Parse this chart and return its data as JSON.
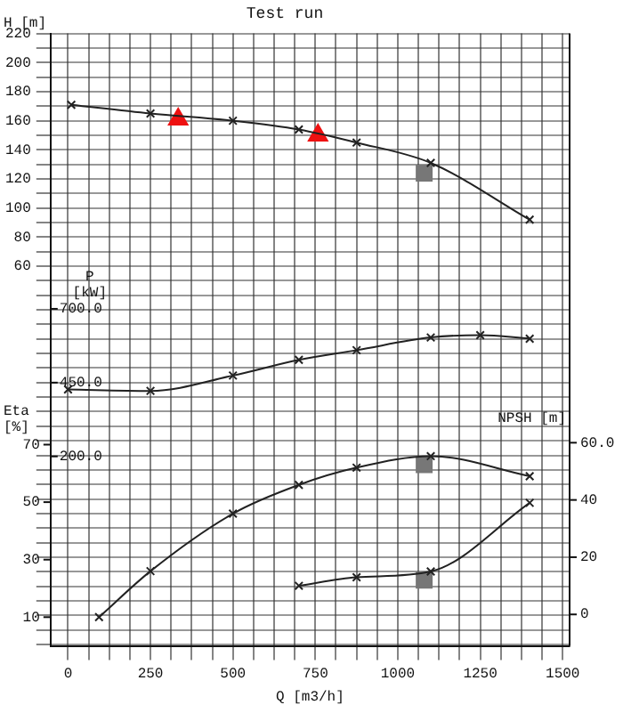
{
  "chart_data": [
    {
      "type": "line",
      "title": "Test run",
      "xlabel": "Q [m3/h]",
      "ylabel": "H [m]",
      "y2label": "P [kW]",
      "xlim": [
        -53,
        1521
      ],
      "xticks": [
        0,
        {
          "value": 62.5,
          "label": null
        },
        {
          "value": 125,
          "label": null
        },
        {
          "value": 187.5,
          "label": null
        },
        250,
        {
          "value": 312.5,
          "label": null
        },
        {
          "value": 375,
          "label": null
        },
        {
          "value": 437.5,
          "label": null
        },
        500,
        {
          "value": 562.5,
          "label": null
        },
        {
          "value": 625,
          "label": null
        },
        {
          "value": 687.5,
          "label": null
        },
        750,
        {
          "value": 812.5,
          "label": null
        },
        {
          "value": 875,
          "label": null
        },
        {
          "value": 937.5,
          "label": null
        },
        1000,
        {
          "value": 1062.5,
          "label": null
        },
        {
          "value": 1125,
          "label": null
        },
        {
          "value": 1187.5,
          "label": null
        },
        1250,
        {
          "value": 1312.5,
          "label": null
        },
        {
          "value": 1375,
          "label": null
        },
        {
          "value": 1437.5,
          "label": null
        },
        1500
      ],
      "ylim": [
        -201,
        220
      ],
      "yticks": [
        {
          "value": -200,
          "label": null
        },
        {
          "value": -190,
          "label": null
        },
        {
          "value": -180,
          "label": null
        },
        {
          "value": -170,
          "label": null
        },
        {
          "value": -160,
          "label": null
        },
        {
          "value": -150,
          "label": null
        },
        {
          "value": -140,
          "label": null
        },
        {
          "value": -130,
          "label": null
        },
        {
          "value": -120,
          "label": null
        },
        {
          "value": -110,
          "label": null
        },
        {
          "value": -100,
          "label": null
        },
        {
          "value": -90,
          "label": null
        },
        {
          "value": -80,
          "label": null
        },
        {
          "value": -70,
          "label": null
        },
        {
          "value": -60,
          "label": null
        },
        {
          "value": -50,
          "label": null
        },
        {
          "value": -40,
          "label": null
        },
        {
          "value": -30,
          "label": null
        },
        {
          "value": -20,
          "label": null
        },
        {
          "value": -10,
          "label": null
        },
        {
          "value": 0,
          "label": null
        },
        {
          "value": 10,
          "label": null
        },
        {
          "value": 20,
          "label": null
        },
        {
          "value": 30,
          "label": null
        },
        {
          "value": 40,
          "label": null
        },
        {
          "value": 50,
          "label": null
        },
        60,
        {
          "value": 70,
          "label": null
        },
        80,
        {
          "value": 90,
          "label": null
        },
        100,
        {
          "value": 110,
          "label": null
        },
        120,
        {
          "value": 130,
          "label": null
        },
        140,
        {
          "value": 150,
          "label": null
        },
        160,
        {
          "value": 170,
          "label": null
        },
        180,
        {
          "value": 190,
          "label": null
        },
        200,
        {
          "value": 210,
          "label": null
        },
        220
      ],
      "y2lim": [
        -442,
        1633
      ],
      "y2ticks": [
        {
          "value": 200,
          "label": "200.0"
        },
        {
          "value": 450,
          "label": "450.0"
        },
        {
          "value": 700,
          "label": "700.0"
        }
      ],
      "grid": true,
      "marker": "cross",
      "series": [
        {
          "color": "#222222",
          "x": [
            10,
            250,
            500,
            700,
            875,
            1100,
            1400
          ],
          "values": [
            171,
            165,
            160,
            154,
            145,
            131,
            92
          ]
        },
        {
          "color": "#222222",
          "axis": "y2",
          "x": [
            0,
            250,
            500,
            700,
            875,
            1100,
            1250,
            1400
          ],
          "values": [
            427,
            422,
            474,
            527,
            560,
            603,
            611,
            599
          ]
        },
        {
          "type": "scatter",
          "color": "#ee1111",
          "marker": "triangle",
          "x": [
            334,
            758
          ],
          "values": [
            161,
            150
          ]
        },
        {
          "type": "scatter",
          "color": "#777777",
          "marker": "square",
          "x": [
            1080
          ],
          "values": [
            124
          ]
        }
      ]
    },
    {
      "type": "line",
      "ylabel": "Eta [%]",
      "y2label": "NPSH [m]",
      "tick_labels": "y",
      "xlim": [
        -53,
        1521
      ],
      "ylim": [
        0,
        213
      ],
      "yticks": [
        10,
        30,
        50,
        70
      ],
      "y2lim": [
        -11,
        203
      ],
      "y2ticks": [
        {
          "value": 0,
          "label": "0"
        },
        20,
        40,
        {
          "value": 60,
          "label": "60.0"
        }
      ],
      "marker": "cross",
      "series": [
        {
          "color": "#222222",
          "x": [
            94,
            250,
            500,
            700,
            875,
            1100,
            1400
          ],
          "values": [
            10,
            26,
            46,
            56,
            62,
            66,
            59
          ]
        },
        {
          "color": "#222222",
          "axis": "y2",
          "x": [
            700,
            875,
            1100,
            1400
          ],
          "values": [
            10,
            13,
            15,
            39
          ]
        },
        {
          "type": "scatter",
          "color": "#777777",
          "marker": "square",
          "x": [
            1080
          ],
          "values": [
            63
          ]
        },
        {
          "type": "scatter",
          "color": "#777777",
          "marker": "square",
          "axis": "y2",
          "x": [
            1080
          ],
          "values": [
            12
          ]
        }
      ]
    }
  ]
}
